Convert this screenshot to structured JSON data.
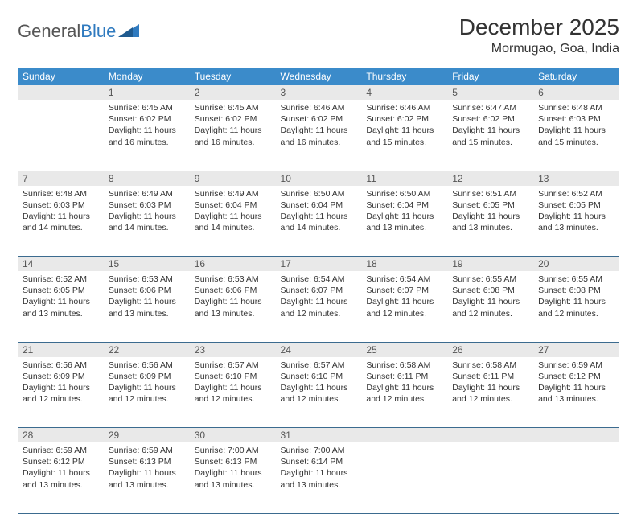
{
  "logo": {
    "text1": "General",
    "text2": "Blue"
  },
  "title": "December 2025",
  "location": "Mormugao, Goa, India",
  "colors": {
    "header_bg": "#3b8bca",
    "header_text": "#ffffff",
    "daynum_bg": "#e9e9e9",
    "daynum_text": "#555555",
    "rule": "#3b6b8f",
    "logo_gray": "#555555",
    "logo_blue": "#2f7abf"
  },
  "day_headers": [
    "Sunday",
    "Monday",
    "Tuesday",
    "Wednesday",
    "Thursday",
    "Friday",
    "Saturday"
  ],
  "weeks": [
    [
      {
        "n": "",
        "lines": []
      },
      {
        "n": "1",
        "lines": [
          "Sunrise: 6:45 AM",
          "Sunset: 6:02 PM",
          "Daylight: 11 hours and 16 minutes."
        ]
      },
      {
        "n": "2",
        "lines": [
          "Sunrise: 6:45 AM",
          "Sunset: 6:02 PM",
          "Daylight: 11 hours and 16 minutes."
        ]
      },
      {
        "n": "3",
        "lines": [
          "Sunrise: 6:46 AM",
          "Sunset: 6:02 PM",
          "Daylight: 11 hours and 16 minutes."
        ]
      },
      {
        "n": "4",
        "lines": [
          "Sunrise: 6:46 AM",
          "Sunset: 6:02 PM",
          "Daylight: 11 hours and 15 minutes."
        ]
      },
      {
        "n": "5",
        "lines": [
          "Sunrise: 6:47 AM",
          "Sunset: 6:02 PM",
          "Daylight: 11 hours and 15 minutes."
        ]
      },
      {
        "n": "6",
        "lines": [
          "Sunrise: 6:48 AM",
          "Sunset: 6:03 PM",
          "Daylight: 11 hours and 15 minutes."
        ]
      }
    ],
    [
      {
        "n": "7",
        "lines": [
          "Sunrise: 6:48 AM",
          "Sunset: 6:03 PM",
          "Daylight: 11 hours and 14 minutes."
        ]
      },
      {
        "n": "8",
        "lines": [
          "Sunrise: 6:49 AM",
          "Sunset: 6:03 PM",
          "Daylight: 11 hours and 14 minutes."
        ]
      },
      {
        "n": "9",
        "lines": [
          "Sunrise: 6:49 AM",
          "Sunset: 6:04 PM",
          "Daylight: 11 hours and 14 minutes."
        ]
      },
      {
        "n": "10",
        "lines": [
          "Sunrise: 6:50 AM",
          "Sunset: 6:04 PM",
          "Daylight: 11 hours and 14 minutes."
        ]
      },
      {
        "n": "11",
        "lines": [
          "Sunrise: 6:50 AM",
          "Sunset: 6:04 PM",
          "Daylight: 11 hours and 13 minutes."
        ]
      },
      {
        "n": "12",
        "lines": [
          "Sunrise: 6:51 AM",
          "Sunset: 6:05 PM",
          "Daylight: 11 hours and 13 minutes."
        ]
      },
      {
        "n": "13",
        "lines": [
          "Sunrise: 6:52 AM",
          "Sunset: 6:05 PM",
          "Daylight: 11 hours and 13 minutes."
        ]
      }
    ],
    [
      {
        "n": "14",
        "lines": [
          "Sunrise: 6:52 AM",
          "Sunset: 6:05 PM",
          "Daylight: 11 hours and 13 minutes."
        ]
      },
      {
        "n": "15",
        "lines": [
          "Sunrise: 6:53 AM",
          "Sunset: 6:06 PM",
          "Daylight: 11 hours and 13 minutes."
        ]
      },
      {
        "n": "16",
        "lines": [
          "Sunrise: 6:53 AM",
          "Sunset: 6:06 PM",
          "Daylight: 11 hours and 13 minutes."
        ]
      },
      {
        "n": "17",
        "lines": [
          "Sunrise: 6:54 AM",
          "Sunset: 6:07 PM",
          "Daylight: 11 hours and 12 minutes."
        ]
      },
      {
        "n": "18",
        "lines": [
          "Sunrise: 6:54 AM",
          "Sunset: 6:07 PM",
          "Daylight: 11 hours and 12 minutes."
        ]
      },
      {
        "n": "19",
        "lines": [
          "Sunrise: 6:55 AM",
          "Sunset: 6:08 PM",
          "Daylight: 11 hours and 12 minutes."
        ]
      },
      {
        "n": "20",
        "lines": [
          "Sunrise: 6:55 AM",
          "Sunset: 6:08 PM",
          "Daylight: 11 hours and 12 minutes."
        ]
      }
    ],
    [
      {
        "n": "21",
        "lines": [
          "Sunrise: 6:56 AM",
          "Sunset: 6:09 PM",
          "Daylight: 11 hours and 12 minutes."
        ]
      },
      {
        "n": "22",
        "lines": [
          "Sunrise: 6:56 AM",
          "Sunset: 6:09 PM",
          "Daylight: 11 hours and 12 minutes."
        ]
      },
      {
        "n": "23",
        "lines": [
          "Sunrise: 6:57 AM",
          "Sunset: 6:10 PM",
          "Daylight: 11 hours and 12 minutes."
        ]
      },
      {
        "n": "24",
        "lines": [
          "Sunrise: 6:57 AM",
          "Sunset: 6:10 PM",
          "Daylight: 11 hours and 12 minutes."
        ]
      },
      {
        "n": "25",
        "lines": [
          "Sunrise: 6:58 AM",
          "Sunset: 6:11 PM",
          "Daylight: 11 hours and 12 minutes."
        ]
      },
      {
        "n": "26",
        "lines": [
          "Sunrise: 6:58 AM",
          "Sunset: 6:11 PM",
          "Daylight: 11 hours and 12 minutes."
        ]
      },
      {
        "n": "27",
        "lines": [
          "Sunrise: 6:59 AM",
          "Sunset: 6:12 PM",
          "Daylight: 11 hours and 13 minutes."
        ]
      }
    ],
    [
      {
        "n": "28",
        "lines": [
          "Sunrise: 6:59 AM",
          "Sunset: 6:12 PM",
          "Daylight: 11 hours and 13 minutes."
        ]
      },
      {
        "n": "29",
        "lines": [
          "Sunrise: 6:59 AM",
          "Sunset: 6:13 PM",
          "Daylight: 11 hours and 13 minutes."
        ]
      },
      {
        "n": "30",
        "lines": [
          "Sunrise: 7:00 AM",
          "Sunset: 6:13 PM",
          "Daylight: 11 hours and 13 minutes."
        ]
      },
      {
        "n": "31",
        "lines": [
          "Sunrise: 7:00 AM",
          "Sunset: 6:14 PM",
          "Daylight: 11 hours and 13 minutes."
        ]
      },
      {
        "n": "",
        "lines": []
      },
      {
        "n": "",
        "lines": []
      },
      {
        "n": "",
        "lines": []
      }
    ]
  ]
}
